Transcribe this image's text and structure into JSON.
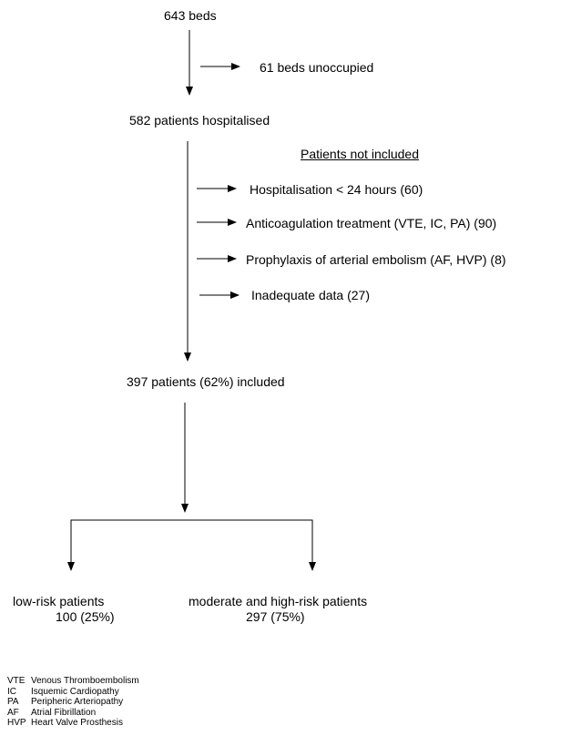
{
  "nodes": {
    "beds": "643 beds",
    "unoccupied": "61 beds unoccupied",
    "hospitalised": "582 patients hospitalised",
    "not_included_header": "Patients not included",
    "exclusions": [
      "Hospitalisation < 24 hours  (60)",
      "Anticoagulation treatment (VTE, IC, PA) (90)",
      "Prophylaxis of arterial embolism (AF, HVP)  (8)",
      "Inadequate data    (27)"
    ],
    "included": "397 patients (62%) included",
    "low_risk_label": "low-risk patients",
    "low_risk_count": "100 (25%)",
    "high_risk_label": "moderate and high-risk patients",
    "high_risk_count": "297 (75%)"
  },
  "legend": [
    {
      "abbr": "VTE",
      "text": "Venous Thromboembolism"
    },
    {
      "abbr": "IC",
      "text": "Isquemic Cardiopathy"
    },
    {
      "abbr": "PA",
      "text": "Peripheric Arteriopathy"
    },
    {
      "abbr": "AF",
      "text": "Atrial Fibrillation"
    },
    {
      "abbr": "HVP",
      "text": "Heart Valve Prosthesis"
    }
  ]
}
